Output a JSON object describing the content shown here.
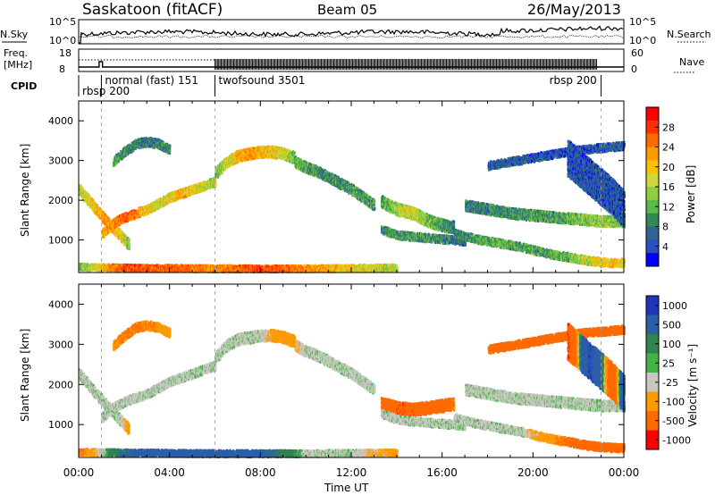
{
  "header": {
    "station": "Saskatoon (fitACF)",
    "beam": "Beam 05",
    "date": "26/May/2013"
  },
  "top_panels": {
    "nsky_label": "N.Sky",
    "nsearch_label": "N.Search",
    "noise_ticks_left": [
      "10^5",
      "10^0"
    ],
    "noise_ticks_right": [
      "10^5",
      "10^0"
    ],
    "freq_label_1": "Freq.",
    "freq_label_2": "[MHz]",
    "freq_ticks": [
      "18",
      "8"
    ],
    "nave_label": "Nave",
    "nave_ticks": [
      "60",
      "0"
    ],
    "cpid_label": "CPID",
    "cpid_segments": [
      {
        "label": "rbsp 200",
        "start": 0.0,
        "end": 1.0,
        "row": "low"
      },
      {
        "label": "normal (fast) 151",
        "start": 1.0,
        "end": 6.0,
        "row": "high"
      },
      {
        "label": "twofsound 3501",
        "start": 6.0,
        "end": 23.0,
        "row": "high"
      },
      {
        "label": "rbsp 200",
        "start": 23.0,
        "end": 24.0,
        "row": "low"
      }
    ]
  },
  "axes": {
    "xlabel": "Time UT",
    "ylabel": "Slant Range [km]",
    "xticks": [
      "00:00",
      "04:00",
      "08:00",
      "12:00",
      "16:00",
      "20:00",
      "00:00"
    ],
    "x_range_hours": [
      0,
      24
    ],
    "y_range_km": [
      180,
      4500
    ],
    "yticks": [
      "1000",
      "2000",
      "3000",
      "4000"
    ],
    "mode_change_hours": [
      1.0,
      6.0,
      23.0
    ]
  },
  "colorbars": {
    "power": {
      "label": "Power [dB]",
      "ticks": [
        "4",
        "8",
        "12",
        "16",
        "20",
        "24",
        "28"
      ],
      "colors": [
        "#0000ff",
        "#2a4fc0",
        "#33628f",
        "#2f8a55",
        "#5db84a",
        "#8fcf45",
        "#cfd83a",
        "#ffc000",
        "#ff9a00",
        "#ff6a00",
        "#ff3000",
        "#ff0000"
      ]
    },
    "velocity": {
      "label": "Velocity [m s⁻¹]",
      "ticks": [
        "1000",
        "500",
        "100",
        "25",
        "-25",
        "-100",
        "-500",
        "-1000"
      ],
      "colors": [
        "#2233bb",
        "#2c5fa8",
        "#2f8450",
        "#44b344",
        "#c8c8c0",
        "#ff9a00",
        "#ff6a00",
        "#ff0000"
      ]
    }
  },
  "chart_data": [
    {
      "type": "heatmap",
      "name": "power",
      "x_unit": "hours UT",
      "y_unit": "km",
      "scatter_bands": [
        {
          "t": [
            0.0,
            0.6,
            1.2,
            1.8,
            2.2
          ],
          "r": [
            2300,
            1900,
            1500,
            1150,
            900
          ],
          "thick": 260,
          "p": [
            14,
            18,
            22,
            18,
            12
          ]
        },
        {
          "t": [
            1.0,
            1.5,
            2.0,
            2.5,
            3.0,
            3.5,
            4.0,
            4.5,
            5.0,
            5.5,
            6.0
          ],
          "r": [
            1200,
            1450,
            1600,
            1700,
            1800,
            1950,
            2100,
            2200,
            2300,
            2400,
            2500
          ],
          "thick": 220,
          "p": [
            20,
            22,
            24,
            22,
            18,
            16,
            18,
            20,
            18,
            16,
            14
          ]
        },
        {
          "t": [
            1.5,
            2.0,
            2.5,
            3.0,
            3.5,
            4.0
          ],
          "r": [
            3000,
            3250,
            3450,
            3500,
            3450,
            3300
          ],
          "thick": 220,
          "p": [
            10,
            8,
            8,
            7,
            8,
            9
          ]
        },
        {
          "t": [
            6.0,
            6.5,
            7.0,
            7.5,
            8.0,
            8.5,
            9.0,
            9.5
          ],
          "r": [
            2700,
            3000,
            3150,
            3200,
            3250,
            3250,
            3200,
            3100
          ],
          "thick": 280,
          "p": [
            12,
            16,
            20,
            22,
            20,
            18,
            16,
            12
          ]
        },
        {
          "t": [
            9.5,
            10.0,
            10.5,
            11.0,
            11.5,
            12.0,
            12.5,
            13.0
          ],
          "r": [
            3000,
            2850,
            2750,
            2600,
            2450,
            2300,
            2100,
            1900
          ],
          "thick": 260,
          "p": [
            12,
            10,
            9,
            9,
            9,
            10,
            10,
            10
          ]
        },
        {
          "t": [
            13.3,
            14.0,
            14.7,
            15.4,
            16.0,
            16.5
          ],
          "r": [
            2000,
            1800,
            1700,
            1500,
            1400,
            1350
          ],
          "thick": 300,
          "p": [
            10,
            14,
            16,
            12,
            10,
            8
          ]
        },
        {
          "t": [
            13.3,
            14.0,
            15.0,
            16.0,
            17.0
          ],
          "r": [
            1300,
            1150,
            1100,
            1050,
            1000
          ],
          "thick": 200,
          "p": [
            8,
            10,
            10,
            8,
            6
          ]
        },
        {
          "t": [
            17.0,
            18.0,
            19.0,
            20.0,
            21.0,
            22.0,
            23.0,
            24.0
          ],
          "r": [
            1900,
            1800,
            1700,
            1650,
            1600,
            1550,
            1500,
            1500
          ],
          "thick": 260,
          "p": [
            8,
            8,
            9,
            10,
            10,
            12,
            14,
            12
          ]
        },
        {
          "t": [
            16.5,
            17.5,
            18.5,
            19.5,
            20.5,
            21.5,
            22.5,
            23.5,
            24.0
          ],
          "r": [
            1200,
            1050,
            950,
            850,
            700,
            600,
            500,
            450,
            450
          ],
          "thick": 200,
          "p": [
            8,
            10,
            12,
            10,
            10,
            12,
            16,
            20,
            16
          ]
        },
        {
          "t": [
            0.0,
            2.0,
            4.0,
            6.0,
            8.0,
            10.0,
            12.0,
            14.0
          ],
          "r": [
            350,
            330,
            320,
            310,
            310,
            310,
            320,
            330
          ],
          "thick": 160,
          "p": [
            12,
            26,
            24,
            22,
            26,
            22,
            18,
            14
          ]
        },
        {
          "t": [
            18.0,
            20.0,
            22.0,
            24.0
          ],
          "r": [
            2900,
            3100,
            3300,
            3400
          ],
          "thick": 200,
          "p": [
            6,
            5,
            5,
            5
          ]
        },
        {
          "t": [
            21.5,
            22.5,
            23.5,
            24.0
          ],
          "r": [
            3100,
            2600,
            2100,
            1800
          ],
          "thick": 900,
          "p": [
            5,
            5,
            5,
            5
          ]
        }
      ]
    },
    {
      "type": "heatmap",
      "name": "velocity",
      "x_unit": "hours UT",
      "y_unit": "km",
      "scatter_bands": [
        {
          "t": [
            0.0,
            0.6,
            1.2,
            1.8,
            2.2
          ],
          "r": [
            2300,
            1900,
            1500,
            1150,
            900
          ],
          "thick": 260,
          "v": [
            0,
            0,
            0,
            0,
            -50
          ]
        },
        {
          "t": [
            1.0,
            1.5,
            2.0,
            2.5,
            3.0,
            3.5,
            4.0,
            4.5,
            5.0,
            5.5,
            6.0
          ],
          "r": [
            1200,
            1450,
            1600,
            1700,
            1800,
            1950,
            2100,
            2200,
            2300,
            2400,
            2500
          ],
          "thick": 220,
          "v": [
            0,
            0,
            0,
            0,
            0,
            0,
            0,
            0,
            0,
            0,
            0
          ]
        },
        {
          "t": [
            1.5,
            2.0,
            2.5,
            3.0,
            3.5,
            4.0
          ],
          "r": [
            3000,
            3250,
            3450,
            3500,
            3450,
            3300
          ],
          "thick": 220,
          "v": [
            -80,
            -100,
            -120,
            -100,
            -80,
            -60
          ]
        },
        {
          "t": [
            6.0,
            6.5,
            7.0,
            7.5,
            8.0,
            8.5,
            9.0,
            9.5
          ],
          "r": [
            2700,
            3000,
            3150,
            3200,
            3250,
            3250,
            3200,
            3100
          ],
          "thick": 280,
          "v": [
            0,
            0,
            0,
            0,
            0,
            -40,
            -60,
            -80
          ]
        },
        {
          "t": [
            9.5,
            10.0,
            10.5,
            11.0,
            11.5,
            12.0,
            12.5,
            13.0
          ],
          "r": [
            3000,
            2850,
            2750,
            2600,
            2450,
            2300,
            2100,
            1900
          ],
          "thick": 260,
          "v": [
            -30,
            0,
            0,
            0,
            0,
            0,
            0,
            0
          ]
        },
        {
          "t": [
            13.3,
            14.0,
            14.7,
            15.4,
            16.0,
            16.5
          ],
          "r": [
            1550,
            1450,
            1400,
            1450,
            1500,
            1550
          ],
          "thick": 300,
          "v": [
            -300,
            -400,
            -400,
            -300,
            -200,
            -100
          ]
        },
        {
          "t": [
            13.3,
            14.0,
            15.0,
            16.0,
            17.0
          ],
          "r": [
            1300,
            1150,
            1100,
            1050,
            1000
          ],
          "thick": 200,
          "v": [
            0,
            0,
            0,
            0,
            0
          ]
        },
        {
          "t": [
            17.0,
            18.0,
            19.0,
            20.0,
            21.0,
            22.0,
            23.0,
            24.0
          ],
          "r": [
            1900,
            1800,
            1700,
            1650,
            1600,
            1550,
            1500,
            1500
          ],
          "thick": 260,
          "v": [
            0,
            0,
            0,
            0,
            0,
            0,
            0,
            0
          ]
        },
        {
          "t": [
            16.5,
            17.5,
            18.5,
            19.5,
            20.5,
            21.5,
            22.5,
            23.5,
            24.0
          ],
          "r": [
            1200,
            1050,
            950,
            850,
            700,
            600,
            500,
            450,
            450
          ],
          "thick": 200,
          "v": [
            0,
            0,
            0,
            0,
            -60,
            -120,
            -200,
            -250,
            -200
          ]
        },
        {
          "t": [
            0.0,
            2.0,
            4.0,
            6.0,
            8.0,
            10.0,
            12.0,
            14.0
          ],
          "r": [
            350,
            330,
            320,
            310,
            310,
            310,
            320,
            330
          ],
          "thick": 160,
          "v": [
            -120,
            120,
            200,
            150,
            150,
            0,
            0,
            -50
          ]
        },
        {
          "t": [
            18.0,
            20.0,
            22.0,
            24.0
          ],
          "r": [
            2900,
            3100,
            3300,
            3400
          ],
          "thick": 200,
          "v": [
            -120,
            -200,
            -300,
            -150
          ]
        },
        {
          "t": [
            21.5,
            22.5,
            23.5,
            24.0
          ],
          "r": [
            3100,
            2600,
            2100,
            1800
          ],
          "thick": 900,
          "v": [
            -500,
            500,
            -300,
            300
          ]
        }
      ]
    }
  ]
}
